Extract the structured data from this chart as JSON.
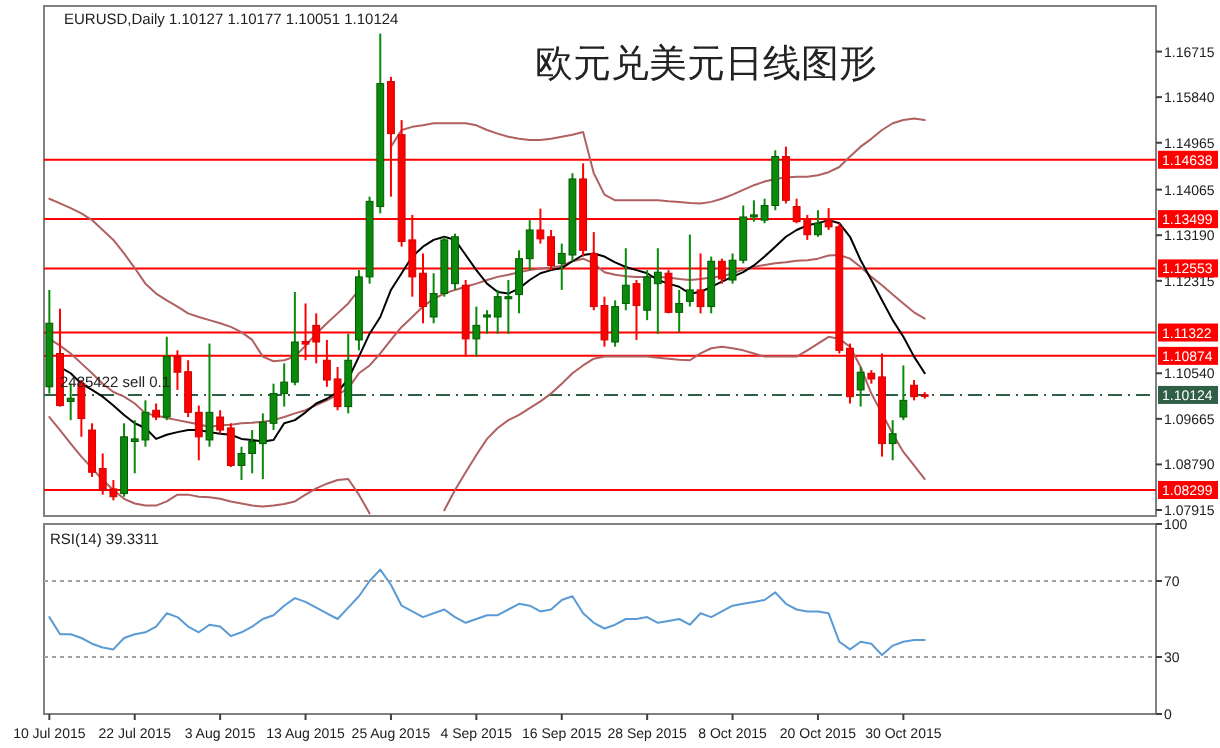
{
  "chart_data": [
    {
      "type": "candlestick",
      "title": "欧元兑美元日线图形",
      "annotations": [
        "EURUSD,Daily  1.10127 1.10177 1.10051 1.10124",
        {
          "text": "2485422 sell 0.1",
          "y": 1.10124
        }
      ],
      "categories": [
        null,
        null,
        null,
        null,
        null,
        null,
        null,
        null,
        null,
        null,
        null,
        null,
        null,
        null,
        null,
        null,
        null,
        null,
        null,
        null,
        null,
        null,
        null,
        null,
        null,
        null,
        null,
        null,
        null,
        null,
        null,
        null,
        null,
        null,
        null,
        null,
        null,
        null,
        null,
        null,
        null,
        null,
        null,
        null,
        null,
        null,
        null,
        null,
        null,
        null,
        null,
        null,
        null,
        null,
        null,
        null,
        null,
        null,
        null,
        null,
        null,
        null,
        null,
        null,
        null,
        null,
        null,
        null,
        null,
        null,
        null,
        null,
        null,
        null,
        null,
        null,
        null,
        null,
        null,
        null,
        null,
        null,
        null
      ],
      "tick_labels": "y",
      "ylim": [
        1.078,
        1.1759
      ],
      "yticks": [
        {
          "value": 1.16715,
          "label": "1.16715"
        },
        {
          "value": 1.1584,
          "label": "1.15840"
        },
        {
          "value": 1.14965,
          "label": "1.14965"
        },
        {
          "value": 1.14065,
          "label": "1.14065"
        },
        {
          "value": 1.1319,
          "label": "1.13190"
        },
        {
          "value": 1.12315,
          "label": "1.12315"
        },
        {
          "value": 1.1054,
          "label": "1.10540"
        },
        {
          "value": 1.09665,
          "label": "1.09665"
        },
        {
          "value": 1.0879,
          "label": "1.08790"
        },
        {
          "value": 1.07915,
          "label": "1.07915"
        }
      ],
      "ref_lines": [
        {
          "axis": "y",
          "value": 1.14638,
          "label": "1.14638",
          "color": "#ff0000"
        },
        {
          "axis": "y",
          "value": 1.13499,
          "label": "1.13499",
          "color": "#ff0000"
        },
        {
          "axis": "y",
          "value": 1.12553,
          "label": "1.12553",
          "color": "#ff0000"
        },
        {
          "axis": "y",
          "value": 1.11322,
          "label": "1.11322",
          "color": "#ff0000"
        },
        {
          "axis": "y",
          "value": 1.10874,
          "label": "1.10874",
          "color": "#ff0000"
        },
        {
          "axis": "y",
          "value": 1.08299,
          "label": "1.08299",
          "color": "#ff0000"
        },
        {
          "axis": "y",
          "value": 1.10124,
          "label": "1.10124",
          "color": "#2f5f45",
          "line_style": "dashed"
        }
      ],
      "ohlc": [
        [
          1.1028,
          1.1214,
          1.1015,
          1.115
        ],
        [
          1.1092,
          1.1178,
          1.099,
          1.0992
        ],
        [
          1.1,
          1.1034,
          1.0964,
          1.1006
        ],
        [
          1.1034,
          1.1041,
          1.0932,
          1.0967
        ],
        [
          1.0945,
          1.0958,
          1.0855,
          1.0864
        ],
        [
          1.0871,
          1.09,
          1.0821,
          1.083
        ],
        [
          1.0832,
          1.0849,
          1.081,
          1.0817
        ],
        [
          1.0823,
          1.0958,
          1.0817,
          1.0932
        ],
        [
          1.0923,
          1.0964,
          1.0862,
          1.0928
        ],
        [
          1.0926,
          1.1002,
          1.0913,
          1.0979
        ],
        [
          1.0983,
          1.0996,
          1.0964,
          1.097
        ],
        [
          1.097,
          1.1124,
          1.0964,
          1.1086
        ],
        [
          1.1086,
          1.1098,
          1.1022,
          1.1056
        ],
        [
          1.1057,
          1.1079,
          1.097,
          1.0979
        ],
        [
          1.0979,
          1.0992,
          1.0887,
          1.0932
        ],
        [
          1.0926,
          1.1111,
          1.0913,
          1.0979
        ],
        [
          1.097,
          1.0983,
          1.0938,
          1.0945
        ],
        [
          1.0949,
          1.0958,
          1.0874,
          1.0877
        ],
        [
          1.0877,
          1.0913,
          1.0849,
          1.09
        ],
        [
          1.09,
          1.0945,
          1.0862,
          1.0923
        ],
        [
          1.0919,
          1.0977,
          1.0851,
          1.096
        ],
        [
          1.0958,
          1.1034,
          1.0945,
          1.1015
        ],
        [
          1.1015,
          1.1073,
          1.099,
          1.1037
        ],
        [
          1.1037,
          1.121,
          1.1031,
          1.1114
        ],
        [
          1.1115,
          1.1188,
          1.1079,
          1.111
        ],
        [
          1.1146,
          1.1169,
          1.1073,
          1.1114
        ],
        [
          1.1079,
          1.1118,
          1.1028,
          1.1041
        ],
        [
          1.1043,
          1.1066,
          1.0983,
          1.099
        ],
        [
          1.099,
          1.113,
          1.0977,
          1.1079
        ],
        [
          1.1118,
          1.1252,
          1.1098,
          1.1239
        ],
        [
          1.1239,
          1.1393,
          1.1226,
          1.1384
        ],
        [
          1.1374,
          1.1706,
          1.1361,
          1.161
        ],
        [
          1.1614,
          1.1623,
          1.1393,
          1.1514
        ],
        [
          1.1512,
          1.154,
          1.1297,
          1.1307
        ],
        [
          1.131,
          1.1358,
          1.1201,
          1.1239
        ],
        [
          1.1246,
          1.1284,
          1.115,
          1.1182
        ],
        [
          1.1162,
          1.1246,
          1.115,
          1.1207
        ],
        [
          1.1207,
          1.1316,
          1.1201,
          1.131
        ],
        [
          1.1226,
          1.1322,
          1.1214,
          1.1316
        ],
        [
          1.1223,
          1.1233,
          1.1086,
          1.112
        ],
        [
          1.112,
          1.1182,
          1.1086,
          1.1146
        ],
        [
          1.1162,
          1.1175,
          1.113,
          1.1166
        ],
        [
          1.1162,
          1.1214,
          1.113,
          1.1201
        ],
        [
          1.1197,
          1.1233,
          1.113,
          1.1201
        ],
        [
          1.1205,
          1.129,
          1.1169,
          1.1274
        ],
        [
          1.1274,
          1.1348,
          1.1252,
          1.1329
        ],
        [
          1.1329,
          1.137,
          1.1303,
          1.1312
        ],
        [
          1.1316,
          1.1329,
          1.1252,
          1.1261
        ],
        [
          1.1265,
          1.1303,
          1.1214,
          1.1284
        ],
        [
          1.1281,
          1.1438,
          1.1269,
          1.1427
        ],
        [
          1.1427,
          1.1457,
          1.1278,
          1.129
        ],
        [
          1.1284,
          1.1325,
          1.1175,
          1.1182
        ],
        [
          1.1184,
          1.1201,
          1.1105,
          1.1118
        ],
        [
          1.1114,
          1.1194,
          1.1105,
          1.1182
        ],
        [
          1.1188,
          1.1294,
          1.1175,
          1.1223
        ],
        [
          1.1226,
          1.1233,
          1.1118,
          1.1184
        ],
        [
          1.1175,
          1.1252,
          1.1156,
          1.1239
        ],
        [
          1.1226,
          1.1294,
          1.113,
          1.1248
        ],
        [
          1.1246,
          1.1252,
          1.1169,
          1.1171
        ],
        [
          1.1171,
          1.1214,
          1.1133,
          1.1188
        ],
        [
          1.1192,
          1.132,
          1.1182,
          1.1214
        ],
        [
          1.1214,
          1.1284,
          1.1169,
          1.1182
        ],
        [
          1.1182,
          1.1278,
          1.1169,
          1.1269
        ],
        [
          1.1269,
          1.1274,
          1.1226,
          1.1235
        ],
        [
          1.1233,
          1.1284,
          1.1226,
          1.1271
        ],
        [
          1.1271,
          1.1376,
          1.1265,
          1.1354
        ],
        [
          1.1354,
          1.1386,
          1.1345,
          1.1358
        ],
        [
          1.1348,
          1.1389,
          1.1342,
          1.1376
        ],
        [
          1.1376,
          1.1482,
          1.1367,
          1.147
        ],
        [
          1.147,
          1.1489,
          1.138,
          1.1386
        ],
        [
          1.1374,
          1.1389,
          1.1342,
          1.1345
        ],
        [
          1.1348,
          1.1358,
          1.131,
          1.132
        ],
        [
          1.132,
          1.1367,
          1.1316,
          1.1342
        ],
        [
          1.1348,
          1.1371,
          1.1329,
          1.1335
        ],
        [
          1.1335,
          1.1342,
          1.1092,
          1.1098
        ],
        [
          1.1102,
          1.1111,
          1.0996,
          1.1009
        ],
        [
          1.1022,
          1.1066,
          1.099,
          1.1056
        ],
        [
          1.1054,
          1.106,
          1.1034,
          1.1043
        ],
        [
          1.1047,
          1.1092,
          1.0894,
          1.0919
        ],
        [
          1.0919,
          1.0964,
          1.0887,
          1.0938
        ],
        [
          1.097,
          1.1069,
          1.0964,
          1.1002
        ],
        [
          1.1031,
          1.1041,
          1.1002,
          1.1009
        ],
        [
          1.10127,
          1.10177,
          1.10051,
          1.10124
        ]
      ],
      "series": [
        {
          "type": "line",
          "color": "#b06060",
          "values": [
            1.1389,
            1.138,
            1.1371,
            1.1361,
            1.1348,
            1.1329,
            1.131,
            1.1284,
            1.1256,
            1.1226,
            1.1207,
            1.1194,
            1.1182,
            1.1169,
            1.1162,
            1.1156,
            1.115,
            1.1143,
            1.1133,
            1.1118,
            1.1086,
            1.1077,
            1.1079,
            1.1086,
            1.1107,
            1.113,
            1.115,
            1.1169,
            1.1188,
            1.1214,
            null,
            null,
            1.1489,
            1.1521,
            1.1527,
            1.153,
            1.1534,
            1.1534,
            1.1534,
            1.1534,
            1.153,
            1.1521,
            1.1514,
            1.1508,
            1.1504,
            1.1502,
            1.1502,
            1.1504,
            1.1508,
            1.1512,
            1.1517,
            1.1438,
            1.1397,
            1.1386,
            1.1386,
            1.1386,
            1.1386,
            1.1386,
            1.1384,
            1.1383,
            1.1381,
            1.138,
            1.1383,
            1.1389,
            1.1397,
            1.1406,
            1.1415,
            1.1422,
            1.1427,
            1.143,
            1.1431,
            1.1431,
            1.1434,
            1.144,
            1.145,
            1.147,
            1.1489,
            1.1504,
            1.1521,
            1.1534,
            1.154,
            1.1543,
            1.154
          ]
        },
        {
          "type": "line",
          "color": "#b06060",
          "values": [
            1.112,
            1.1107,
            1.1092,
            1.1073,
            1.1054,
            1.1034,
            1.1018,
            1.1009,
            1.0996,
            1.0977,
            1.0973,
            1.0968,
            1.0964,
            1.096,
            1.0956,
            1.0951,
            1.0954,
            1.0955,
            1.0958,
            1.0959,
            1.0961,
            1.0964,
            1.097,
            1.0977,
            1.0983,
            1.0993,
            1.1002,
            1.1013,
            1.1025,
            1.1054,
            1.1069,
            1.1092,
            1.1118,
            1.1143,
            1.1162,
            1.1182,
            1.1197,
            1.1207,
            1.1214,
            1.122,
            1.1226,
            1.1233,
            1.1239,
            1.1243,
            1.1248,
            1.1252,
            1.1255,
            1.1257,
            1.126,
            1.1269,
            1.1274,
            1.1265,
            1.1248,
            1.1243,
            1.124,
            1.1239,
            1.1239,
            1.1239,
            1.1238,
            1.1235,
            1.1233,
            1.1235,
            1.1238,
            1.124,
            1.1246,
            1.1253,
            1.1258,
            1.1262,
            1.1265,
            1.1267,
            1.127,
            1.1271,
            1.1274,
            1.128,
            1.1281,
            1.1274,
            1.1258,
            1.1239,
            1.1223,
            1.1205,
            1.1188,
            1.1171,
            1.1159
          ]
        },
        {
          "type": "line",
          "color": "#b06060",
          "values": [
            1.097,
            1.0945,
            1.0919,
            1.0894,
            1.0872,
            1.0849,
            1.083,
            1.0813,
            1.0804,
            1.08,
            1.08,
            1.0808,
            1.0821,
            1.0821,
            1.0817,
            1.0816,
            1.0813,
            1.0808,
            1.0804,
            1.08,
            1.0798,
            1.08,
            1.0803,
            1.0808,
            1.0821,
            1.0833,
            1.0842,
            1.0849,
            1.0851,
            1.0821,
            1.0785,
            null,
            null,
            null,
            null,
            null,
            null,
            1.0791,
            1.083,
            1.0864,
            1.0897,
            1.0928,
            1.0949,
            1.0964,
            1.0974,
            1.0987,
            1.1,
            1.1015,
            1.1034,
            1.1054,
            1.1069,
            1.1082,
            1.1086,
            1.1086,
            1.1086,
            1.1086,
            1.1086,
            1.1084,
            1.1082,
            1.108,
            1.1079,
            1.1092,
            1.1102,
            1.1105,
            1.1102,
            1.1098,
            1.1092,
            1.1086,
            1.1086,
            1.1086,
            1.1086,
            1.1098,
            1.1111,
            1.1124,
            1.112,
            1.1105,
            1.1066,
            1.1015,
            1.0977,
            1.0938,
            1.0903,
            1.0877,
            1.0851
          ]
        },
        {
          "type": "line",
          "color": "#000000",
          "values": [
            null,
            1.1066,
            1.1054,
            1.1034,
            1.1022,
            1.1009,
            1.0992,
            1.0974,
            1.0958,
            1.0949,
            1.0928,
            1.0936,
            1.0941,
            1.0945,
            1.0945,
            1.0941,
            1.0938,
            1.0936,
            1.0928,
            1.0926,
            1.0923,
            1.0926,
            1.0958,
            1.0964,
            1.0979,
            1.0996,
            1.1005,
            1.1018,
            1.1043,
            1.1086,
            1.113,
            1.1162,
            1.1214,
            1.1246,
            1.1278,
            1.1297,
            1.131,
            1.1316,
            1.131,
            1.1281,
            1.1252,
            1.1226,
            1.121,
            1.1207,
            1.1217,
            1.1233,
            1.1246,
            1.1252,
            1.1256,
            1.1269,
            1.1281,
            1.1284,
            1.1278,
            1.1267,
            1.1258,
            1.1252,
            1.1246,
            1.1233,
            1.1226,
            1.122,
            1.1207,
            1.121,
            1.122,
            1.123,
            1.1239,
            1.1248,
            1.1261,
            1.1278,
            1.1297,
            1.1316,
            1.1329,
            1.1338,
            1.1342,
            1.1348,
            1.1342,
            1.1316,
            1.1271,
            1.1233,
            1.1194,
            1.1156,
            1.1124,
            1.1086,
            1.1054
          ]
        }
      ]
    },
    {
      "type": "line",
      "title": "RSI(14) 39.3311",
      "categories": [
        "10 Jul 2015",
        null,
        null,
        null,
        null,
        null,
        null,
        null,
        "22 Jul 2015",
        null,
        null,
        null,
        null,
        null,
        null,
        null,
        "3 Aug 2015",
        null,
        null,
        null,
        null,
        null,
        null,
        null,
        "13 Aug 2015",
        null,
        null,
        null,
        null,
        null,
        null,
        null,
        "25 Aug 2015",
        null,
        null,
        null,
        null,
        null,
        null,
        null,
        "4 Sep 2015",
        null,
        null,
        null,
        null,
        null,
        null,
        null,
        "16 Sep 2015",
        null,
        null,
        null,
        null,
        null,
        null,
        null,
        "28 Sep 2015",
        null,
        null,
        null,
        null,
        null,
        null,
        null,
        "8 Oct 2015",
        null,
        null,
        null,
        null,
        null,
        null,
        null,
        "20 Oct 2015",
        null,
        null,
        null,
        null,
        null,
        null,
        null,
        "30 Oct 2015",
        null,
        null
      ],
      "ylim": [
        0,
        100
      ],
      "yticks": [
        100,
        70,
        30,
        0
      ],
      "ref_lines": [
        {
          "axis": "y",
          "value": 70,
          "color": "#a0a0a0",
          "line_style": "dotted"
        },
        {
          "axis": "y",
          "value": 30,
          "color": "#a0a0a0",
          "line_style": "dotted"
        }
      ],
      "series": [
        {
          "color": "#5b9bd5",
          "values": [
            51,
            42,
            42,
            40,
            37,
            35,
            34,
            40,
            42,
            43,
            46,
            53,
            51,
            46,
            43,
            47,
            46,
            41,
            43,
            46,
            50,
            52,
            57,
            61,
            59,
            56,
            53,
            50,
            56,
            62,
            70,
            76,
            68,
            57,
            54,
            51,
            53,
            55,
            51,
            48,
            50,
            52,
            52,
            55,
            58,
            57,
            54,
            55,
            60,
            62,
            53,
            48,
            45,
            47,
            50,
            50,
            51,
            48,
            49,
            50,
            47,
            53,
            51,
            54,
            57,
            58,
            59,
            60,
            64,
            58,
            55,
            54,
            54,
            53,
            38,
            34,
            38,
            37,
            31,
            36,
            38,
            39,
            39
          ]
        }
      ]
    }
  ]
}
